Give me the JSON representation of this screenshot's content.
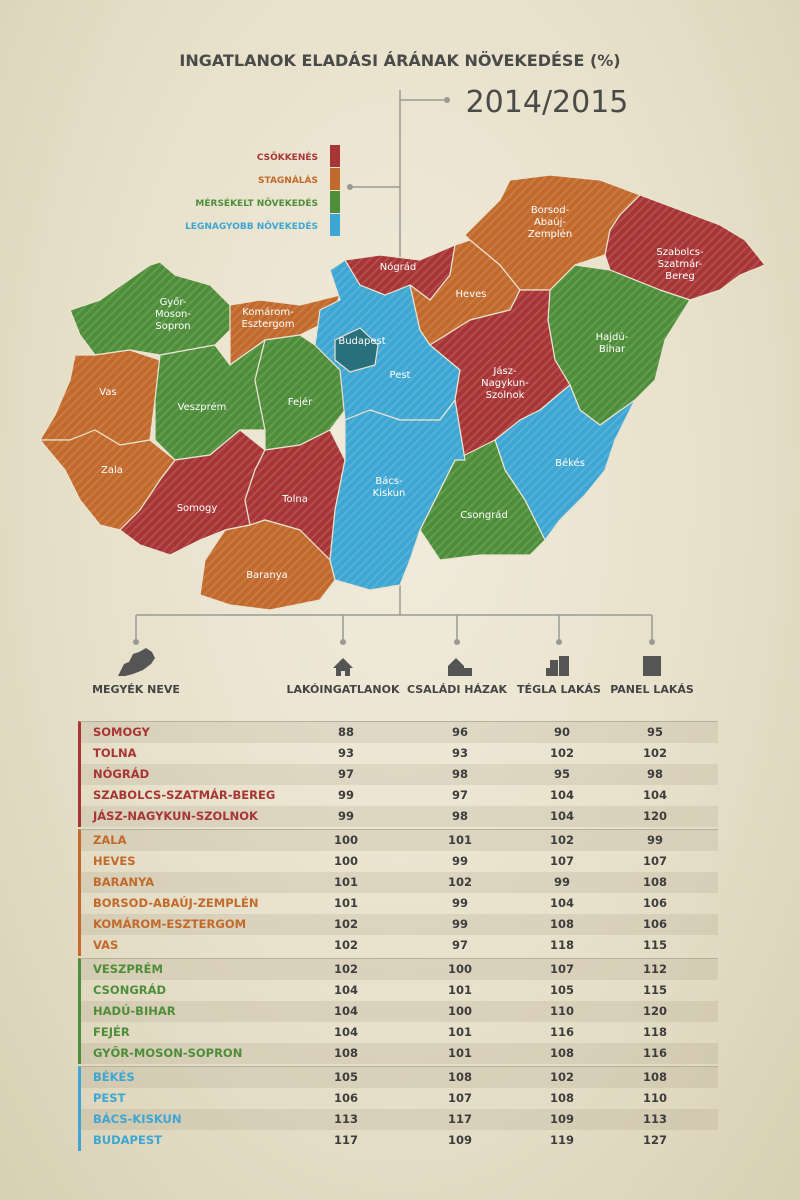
{
  "header": {
    "title": "INGATLANOK ELADÁSI ÁRÁNAK NÖVEKEDÉSE (%)",
    "year": "2014/2015"
  },
  "legend": [
    {
      "label": "CSÖKKENÉS",
      "color": "#a83535"
    },
    {
      "label": "STAGNÁLÁS",
      "color": "#c2692c"
    },
    {
      "label": "MÉRSÉKELT NÖVEKEDÉS",
      "color": "#4e8e3a"
    },
    {
      "label": "LEGNAGYOBB NÖVEKEDÉS",
      "color": "#3ea6d2"
    }
  ],
  "map": {
    "regions": [
      {
        "lines": [
          "Győr-",
          "Moson-",
          "Sopron"
        ]
      },
      {
        "lines": [
          "Komárom-",
          "Esztergom"
        ]
      },
      {
        "lines": [
          "Vas"
        ]
      },
      {
        "lines": [
          "Veszprém"
        ]
      },
      {
        "lines": [
          "Fejér"
        ]
      },
      {
        "lines": [
          "Zala"
        ]
      },
      {
        "lines": [
          "Somogy"
        ]
      },
      {
        "lines": [
          "Tolna"
        ]
      },
      {
        "lines": [
          "Baranya"
        ]
      },
      {
        "lines": [
          "Budapest"
        ]
      },
      {
        "lines": [
          "Pest"
        ]
      },
      {
        "lines": [
          "Nógrád"
        ]
      },
      {
        "lines": [
          "Heves"
        ]
      },
      {
        "lines": [
          "Borsod-",
          "Abaúj-",
          "Zemplén"
        ]
      },
      {
        "lines": [
          "Szabolcs-",
          "Szatmár-",
          "Bereg"
        ]
      },
      {
        "lines": [
          "Hajdú-",
          "Bihar"
        ]
      },
      {
        "lines": [
          "Jász-",
          "Nagykun-",
          "Szolnok"
        ]
      },
      {
        "lines": [
          "Békés"
        ]
      },
      {
        "lines": [
          "Csongrád"
        ]
      },
      {
        "lines": [
          "Bács-",
          "Kiskun"
        ]
      }
    ]
  },
  "table": {
    "columns": [
      "MEGYÉK NEVE",
      "LAKÓINGATLANOK",
      "CSALÁDI HÁZAK",
      "TÉGLA LAKÁS",
      "PANEL LAKÁS"
    ],
    "groups": [
      {
        "rows": [
          [
            "SOMOGY",
            88,
            96,
            90,
            95
          ],
          [
            "TOLNA",
            93,
            93,
            102,
            102
          ],
          [
            "NÓGRÁD",
            97,
            98,
            95,
            98
          ],
          [
            "SZABOLCS-SZATMÁR-BEREG",
            99,
            97,
            104,
            104
          ],
          [
            "JÁSZ-NAGYKUN-SZOLNOK",
            99,
            98,
            104,
            120
          ]
        ]
      },
      {
        "rows": [
          [
            "ZALA",
            100,
            101,
            102,
            99
          ],
          [
            "HEVES",
            100,
            99,
            107,
            107
          ],
          [
            "BARANYA",
            101,
            102,
            99,
            108
          ],
          [
            "BORSOD-ABAÚJ-ZEMPLÉN",
            101,
            99,
            104,
            106
          ],
          [
            "KOMÁROM-ESZTERGOM",
            102,
            99,
            108,
            106
          ],
          [
            "VAS",
            102,
            97,
            118,
            115
          ]
        ]
      },
      {
        "rows": [
          [
            "VESZPRÉM",
            102,
            100,
            107,
            112
          ],
          [
            "CSONGRÁD",
            104,
            101,
            105,
            115
          ],
          [
            "HADÚ-BIHAR",
            104,
            100,
            110,
            120
          ],
          [
            "FEJÉR",
            104,
            101,
            116,
            118
          ],
          [
            "GYŐR-MOSON-SOPRON",
            108,
            101,
            108,
            116
          ]
        ]
      },
      {
        "rows": [
          [
            "BÉKÉS",
            105,
            108,
            102,
            108
          ],
          [
            "PEST",
            106,
            107,
            108,
            110
          ],
          [
            "BÁCS-KISKUN",
            113,
            117,
            109,
            113
          ],
          [
            "BUDAPEST",
            117,
            109,
            119,
            127
          ]
        ]
      }
    ]
  }
}
